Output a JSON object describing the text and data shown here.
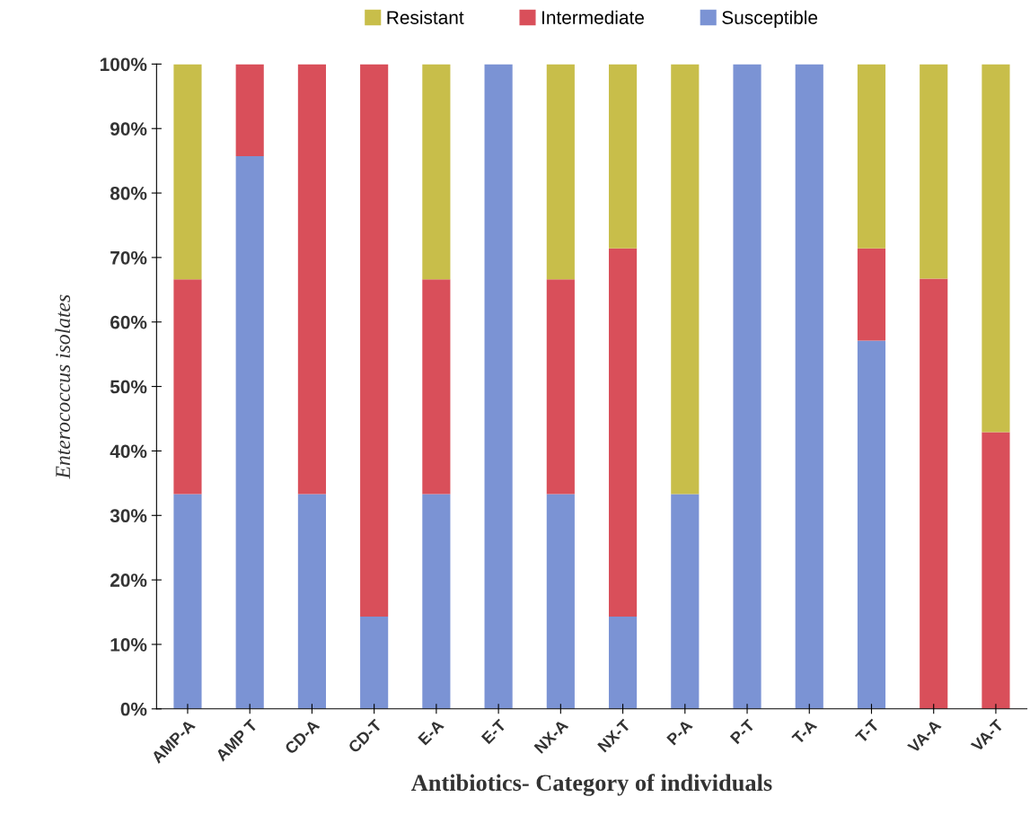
{
  "chart_data": {
    "type": "bar",
    "stacked": true,
    "xlabel": "Antibiotics- Category of individuals",
    "ylabel": "Enterococcus isolates",
    "categories": [
      "AMP-A",
      "AMP T",
      "CD-A",
      "CD-T",
      "E-A",
      "E-T",
      "NX-A",
      "NX-T",
      "P-A",
      "P-T",
      "T-A",
      "T-T",
      "VA-A",
      "VA-T"
    ],
    "series": [
      {
        "name": "Susceptible",
        "color": "#7b93d4",
        "values": [
          33.3,
          85.7,
          33.3,
          14.3,
          33.3,
          100,
          33.3,
          14.3,
          33.3,
          100,
          100,
          57.1,
          0,
          0
        ]
      },
      {
        "name": "Intermediate",
        "color": "#d94f5a",
        "values": [
          33.3,
          14.3,
          66.7,
          85.7,
          33.3,
          0,
          33.3,
          57.1,
          0,
          0,
          0,
          14.3,
          66.7,
          42.9
        ]
      },
      {
        "name": "Resistant",
        "color": "#c8be4a",
        "values": [
          33.4,
          0,
          0,
          0,
          33.4,
          0,
          33.4,
          28.6,
          66.7,
          0,
          0,
          28.6,
          33.3,
          57.1
        ]
      }
    ],
    "ylim": [
      0,
      100
    ],
    "yticks": [
      {
        "value": 0,
        "label": "0%"
      },
      {
        "value": 10,
        "label": "10%"
      },
      {
        "value": 20,
        "label": "20%"
      },
      {
        "value": 30,
        "label": "30%"
      },
      {
        "value": 40,
        "label": "40%"
      },
      {
        "value": 50,
        "label": "50%"
      },
      {
        "value": 60,
        "label": "60%"
      },
      {
        "value": 70,
        "label": "70%"
      },
      {
        "value": 80,
        "label": "80%"
      },
      {
        "value": 90,
        "label": "90%"
      },
      {
        "value": 100,
        "label": "100%"
      }
    ],
    "grid": false,
    "legend": "top"
  }
}
